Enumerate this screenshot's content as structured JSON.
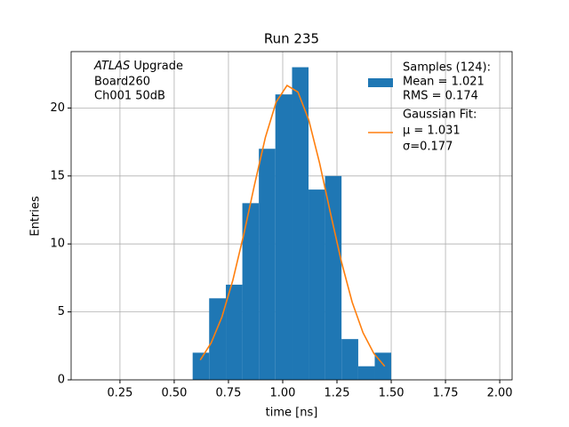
{
  "chart_data": {
    "type": "histogram",
    "title": "Run 235",
    "xlabel": "time [ns]",
    "ylabel": "Entries",
    "annotation": [
      "ATLAS",
      " Upgrade",
      " Board260",
      " Ch001 50dB"
    ],
    "bins": [
      0.585,
      0.661,
      0.738,
      0.814,
      0.89,
      0.966,
      1.043,
      1.119,
      1.195,
      1.271,
      1.348,
      1.424,
      1.5
    ],
    "values": [
      2,
      6,
      7,
      13,
      17,
      21,
      23,
      14,
      15,
      3,
      1,
      2
    ],
    "color": "#1f77b4",
    "legend_name": [
      "Samples (124):",
      " Mean = 1.021",
      " RMS = 0.174"
    ],
    "fit": {
      "name": [
        "Gaussian Fit:",
        " μ = 1.031",
        " σ=0.177"
      ],
      "color": "#ff7f0e",
      "x": [
        0.62,
        0.67,
        0.72,
        0.77,
        0.82,
        0.87,
        0.92,
        0.97,
        1.02,
        1.07,
        1.12,
        1.17,
        1.22,
        1.27,
        1.32,
        1.37,
        1.42,
        1.47
      ],
      "values": [
        1.46,
        2.71,
        4.63,
        7.32,
        10.66,
        14.35,
        17.83,
        20.45,
        21.66,
        21.18,
        19.12,
        15.94,
        12.27,
        8.72,
        5.72,
        3.47,
        1.94,
        1.0
      ]
    },
    "xlim": [
      0.025,
      2.057
    ],
    "ylim": [
      0,
      24.15
    ],
    "xticks": [
      0.25,
      {
        "value": 0.5,
        "label": "0.50"
      },
      0.75,
      {
        "value": 1.0,
        "label": "1.00"
      },
      1.25,
      {
        "value": 1.5,
        "label": "1.50"
      },
      1.75,
      {
        "value": 2.0,
        "label": "2.00"
      }
    ],
    "yticks": [
      0,
      5,
      10,
      15,
      20
    ],
    "grid": true,
    "legend": "upper right"
  }
}
